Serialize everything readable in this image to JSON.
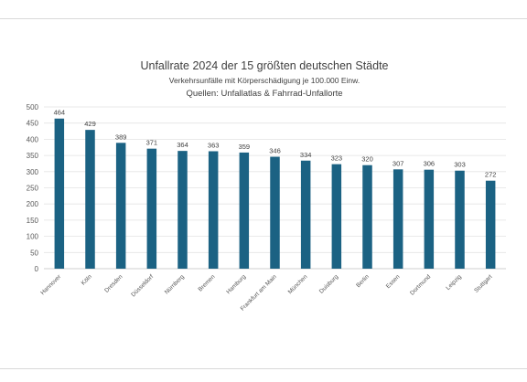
{
  "chart_data": {
    "type": "bar",
    "title": "Unfallrate 2024 der 15 größten deutschen Städte",
    "subtitle": "Verkehrsunfälle mit Körperschädigung je 100.000 Einw.",
    "source": "Quellen: Unfallatlas & Fahrrad-Unfallorte",
    "categories": [
      "Hannover",
      "Köln",
      "Dresden",
      "Düsseldorf",
      "Nürnberg",
      "Bremen",
      "Hamburg",
      "Frankfurt am Main",
      "München",
      "Duisburg",
      "Berlin",
      "Essen",
      "Dortmund",
      "Leipzig",
      "Stuttgart"
    ],
    "values": [
      464,
      429,
      389,
      371,
      364,
      363,
      359,
      346,
      334,
      323,
      320,
      307,
      306,
      303,
      272
    ],
    "yticks": [
      0,
      50,
      100,
      150,
      200,
      250,
      300,
      350,
      400,
      450,
      500
    ],
    "ylim": [
      0,
      500
    ],
    "grid": true,
    "bar_color": "#1b6283"
  }
}
